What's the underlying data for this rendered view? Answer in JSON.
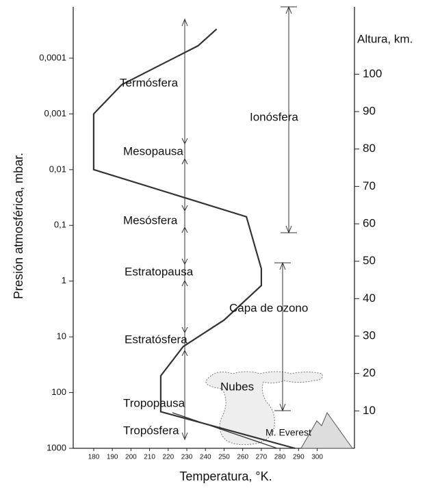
{
  "chart_data": {
    "type": "line",
    "xlabel": "Temperatura, °K.",
    "ylabel": "Presión atmosférica, mbar.",
    "y2label": "Altura, km.",
    "annotations": [
      "Termósfera",
      "Ionósfera",
      "Mesopausa",
      "Mesósfera",
      "Estratopausa",
      "Capa de ozono",
      "Estratósfera",
      "Nubes",
      "Tropopausa",
      "Tropósfera",
      "M. Everest"
    ],
    "x": [
      246,
      236,
      195,
      180,
      180,
      262,
      270,
      270,
      250,
      228,
      216,
      216,
      288
    ],
    "values": [
      3e-05,
      6e-05,
      0.0003,
      0.001,
      0.01,
      0.07,
      0.6,
      1.2,
      5,
      15,
      50,
      220,
      1000
    ],
    "color": "#333333",
    "xlim": [
      169,
      320
    ],
    "xticks": [
      180,
      190,
      200,
      210,
      220,
      230,
      240,
      250,
      260,
      270,
      280,
      290,
      300
    ],
    "ylim": [
      1000,
      1.2e-05
    ],
    "ylog": true,
    "yticks": [
      {
        "value": 0.0001,
        "label": "0,0001"
      },
      {
        "value": 0.001,
        "label": "0,001"
      },
      {
        "value": 0.01,
        "label": "0,01"
      },
      {
        "value": 0.1,
        "label": "0,1"
      },
      1,
      10,
      100,
      1000
    ],
    "y2lim": [
      0,
      118
    ],
    "y2ticks": [
      10,
      20,
      30,
      40,
      50,
      60,
      70,
      80,
      90,
      100
    ],
    "grid": false
  }
}
